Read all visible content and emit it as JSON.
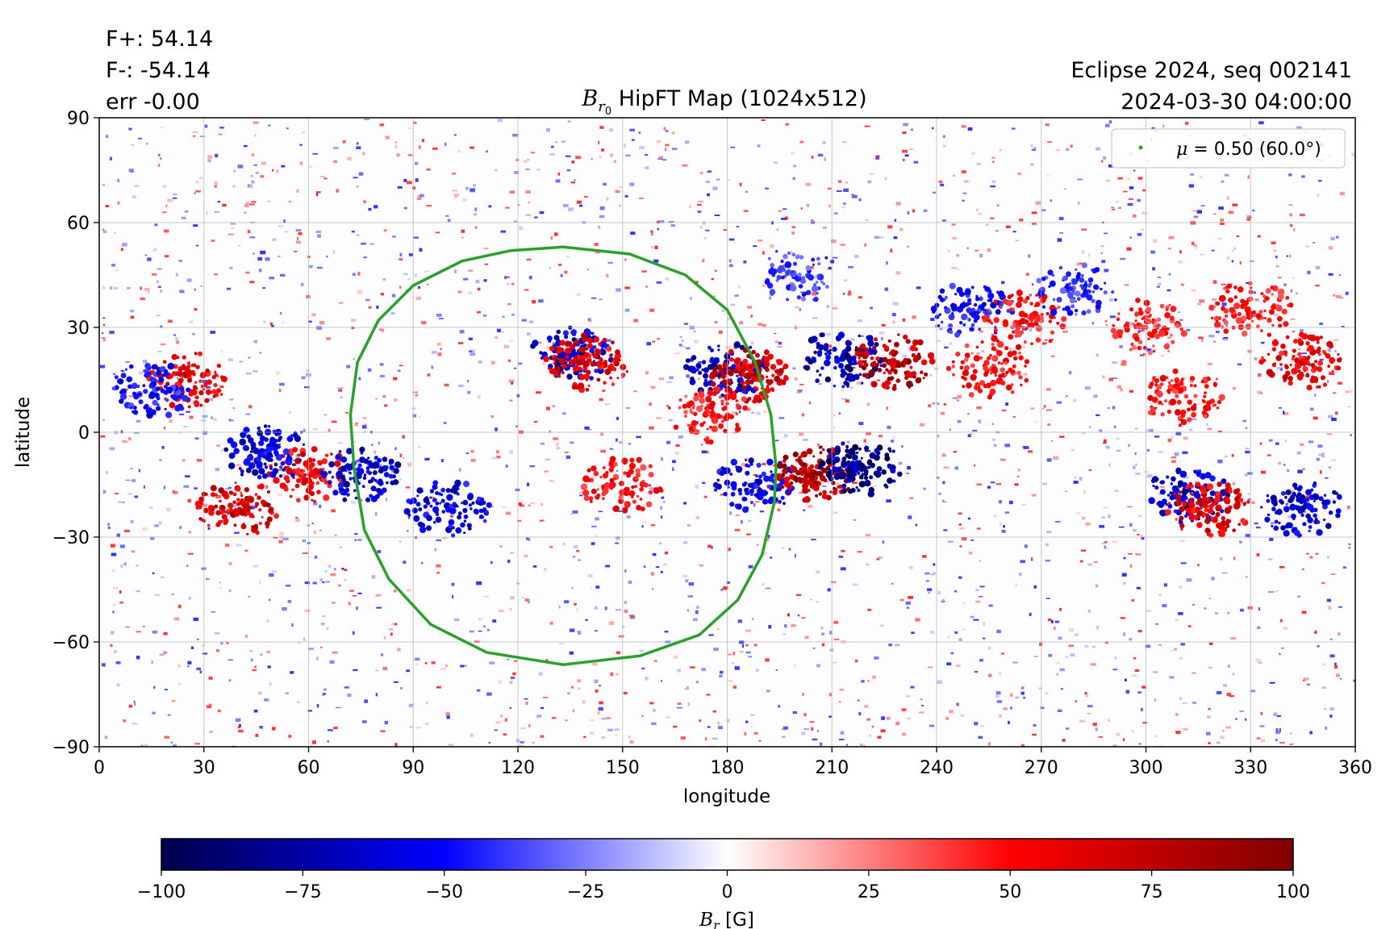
{
  "figure": {
    "stats": {
      "fplus": "F+: 54.14",
      "fminus": "F-: -54.14",
      "err": "err -0.00"
    },
    "title_symbol": "B",
    "title_sub": "r",
    "title_subsub": "0",
    "title_text": " HipFT Map (1024x512)",
    "info_line1": "Eclipse 2024, seq 002141",
    "info_line2": "2024-03-30 04:00:00"
  },
  "chart_data": {
    "type": "heatmap",
    "xlabel": "longitude",
    "ylabel": "latitude",
    "xlim": [
      0,
      360
    ],
    "ylim": [
      -90,
      90
    ],
    "xticks": [
      0,
      30,
      60,
      90,
      120,
      150,
      180,
      210,
      240,
      270,
      300,
      330,
      360
    ],
    "yticks": [
      -90,
      -60,
      -30,
      0,
      30,
      60,
      90
    ],
    "xtick_labels": [
      "0",
      "30",
      "60",
      "90",
      "120",
      "150",
      "180",
      "210",
      "240",
      "270",
      "300",
      "330",
      "360"
    ],
    "ytick_labels": [
      "−90",
      "−60",
      "−30",
      "0",
      "30",
      "60",
      "90"
    ],
    "grid": true,
    "legend": {
      "placement": "top-right",
      "symbol": "μ",
      "text": " = 0.50 (60.0°)",
      "color": "#2ca02c"
    },
    "contour": {
      "name": "μ = 0.50 (60.0°)",
      "color": "#2ca02c",
      "lon": [
        133,
        152,
        168,
        180,
        188,
        192.5,
        194,
        193.5,
        190,
        183,
        172,
        155,
        133,
        111,
        95,
        83,
        76,
        73,
        72,
        74,
        80,
        90,
        104,
        118,
        133
      ],
      "lat": [
        53,
        51,
        45,
        35,
        20,
        5,
        -10,
        -20,
        -35,
        -48,
        -58,
        -64,
        -66.5,
        -63,
        -55,
        -42,
        -28,
        -10,
        5,
        20,
        32,
        42,
        49,
        52,
        53
      ]
    },
    "colorbar": {
      "label_symbol": "B",
      "label_sub": "r",
      "label_unit": " [G]",
      "min": -100,
      "max": 100,
      "ticks": [
        -100,
        -75,
        -50,
        -25,
        0,
        25,
        50,
        75,
        100
      ],
      "tick_labels": [
        "−100",
        "−75",
        "−50",
        "−25",
        "0",
        "25",
        "50",
        "75",
        "100"
      ],
      "colormap": "seismic"
    },
    "field_regions": [
      {
        "lon": 40,
        "lat": -22,
        "polarity": "positive",
        "strength": 80
      },
      {
        "lon": 60,
        "lat": -12,
        "polarity": "positive",
        "strength": 70
      },
      {
        "lon": 48,
        "lat": -6,
        "polarity": "negative",
        "strength": 75
      },
      {
        "lon": 75,
        "lat": -12,
        "polarity": "negative",
        "strength": 80
      },
      {
        "lon": 25,
        "lat": 15,
        "polarity": "positive",
        "strength": 70
      },
      {
        "lon": 15,
        "lat": 12,
        "polarity": "negative",
        "strength": 60
      },
      {
        "lon": 100,
        "lat": -22,
        "polarity": "negative",
        "strength": 70
      },
      {
        "lon": 135,
        "lat": 22,
        "polarity": "negative",
        "strength": 80
      },
      {
        "lon": 140,
        "lat": 20,
        "polarity": "positive",
        "strength": 75
      },
      {
        "lon": 180,
        "lat": 18,
        "polarity": "negative",
        "strength": 80
      },
      {
        "lon": 186,
        "lat": 16,
        "polarity": "positive",
        "strength": 85
      },
      {
        "lon": 175,
        "lat": 5,
        "polarity": "positive",
        "strength": 60
      },
      {
        "lon": 150,
        "lat": -15,
        "polarity": "positive",
        "strength": 60
      },
      {
        "lon": 188,
        "lat": -15,
        "polarity": "negative",
        "strength": 70
      },
      {
        "lon": 205,
        "lat": -12,
        "polarity": "positive",
        "strength": 100
      },
      {
        "lon": 218,
        "lat": -10,
        "polarity": "negative",
        "strength": 100
      },
      {
        "lon": 213,
        "lat": 21,
        "polarity": "negative",
        "strength": 90
      },
      {
        "lon": 228,
        "lat": 20,
        "polarity": "positive",
        "strength": 90
      },
      {
        "lon": 255,
        "lat": 18,
        "polarity": "positive",
        "strength": 60
      },
      {
        "lon": 312,
        "lat": -18,
        "polarity": "negative",
        "strength": 80
      },
      {
        "lon": 318,
        "lat": -22,
        "polarity": "positive",
        "strength": 75
      },
      {
        "lon": 345,
        "lat": -22,
        "polarity": "negative",
        "strength": 75
      },
      {
        "lon": 345,
        "lat": 20,
        "polarity": "positive",
        "strength": 70
      },
      {
        "lon": 310,
        "lat": 10,
        "polarity": "positive",
        "strength": 60
      },
      {
        "lon": 300,
        "lat": 30,
        "polarity": "positive",
        "strength": 50
      },
      {
        "lon": 250,
        "lat": 35,
        "polarity": "negative",
        "strength": 60
      },
      {
        "lon": 265,
        "lat": 32,
        "polarity": "positive",
        "strength": 60
      },
      {
        "lon": 330,
        "lat": 35,
        "polarity": "positive",
        "strength": 55
      },
      {
        "lon": 280,
        "lat": 40,
        "polarity": "negative",
        "strength": 50
      },
      {
        "lon": 200,
        "lat": 45,
        "polarity": "negative",
        "strength": 45
      }
    ]
  }
}
